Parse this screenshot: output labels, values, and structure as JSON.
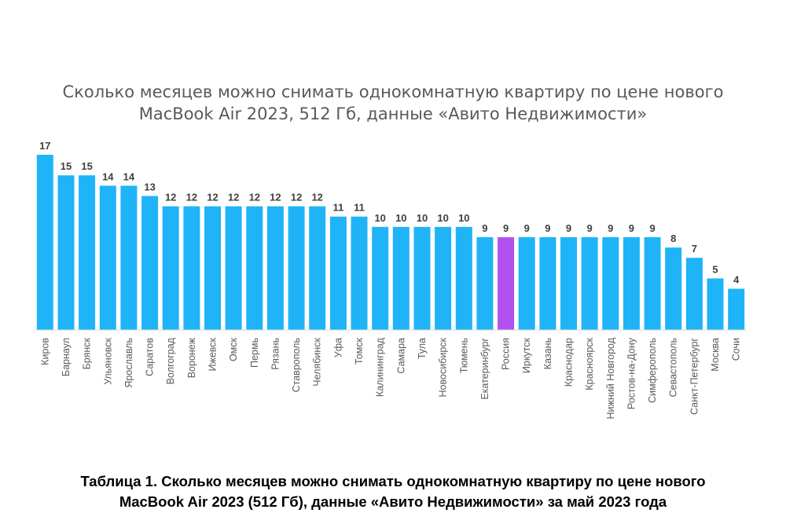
{
  "title_lines": [
    "Сколько месяцев можно снимать однокомнатную квартиру по цене нового",
    "MacBook Air 2023, 512 Гб, данные «Авито Недвижимости»"
  ],
  "caption_lines": [
    "Таблица 1. Сколько месяцев можно снимать однокомнатную квартиру по цене нового",
    "MacBook Air 2023 (512 Гб), данные «Авито Недвижимости» за май 2023 года"
  ],
  "colors": {
    "bar": "#1fb4f7",
    "highlight": "#b351f0",
    "axis": "#d9d9d9",
    "value_label": "#404040",
    "category_label": "#595959"
  },
  "chart_data": {
    "type": "bar",
    "title": "Сколько месяцев можно снимать однокомнатную квартиру по цене нового MacBook Air 2023, 512 Гб, данные «Авито Недвижимости»",
    "xlabel": "",
    "ylabel": "",
    "ylim": [
      0,
      17
    ],
    "grid": false,
    "legend": "none",
    "highlight_category": "Россия",
    "categories": [
      "Киров",
      "Барнаул",
      "Брянск",
      "Ульяновск",
      "Ярославль",
      "Саратов",
      "Волгоград",
      "Воронеж",
      "Ижевск",
      "Омск",
      "Пермь",
      "Рязань",
      "Ставрополь",
      "Челябинск",
      "Уфа",
      "Томск",
      "Калининград",
      "Самара",
      "Тула",
      "Новосибирск",
      "Тюмень",
      "Екатеринбург",
      "Россия",
      "Иркутск",
      "Казань",
      "Краснодар",
      "Красноярск",
      "Нижний Новгород",
      "Ростов-на-Дону",
      "Симферополь",
      "Севастополь",
      "Санкт-Петербург",
      "Москва",
      "Сочи"
    ],
    "values": [
      17,
      15,
      15,
      14,
      14,
      13,
      12,
      12,
      12,
      12,
      12,
      12,
      12,
      12,
      11,
      11,
      10,
      10,
      10,
      10,
      10,
      9,
      9,
      9,
      9,
      9,
      9,
      9,
      9,
      9,
      8,
      7,
      5,
      4
    ]
  }
}
